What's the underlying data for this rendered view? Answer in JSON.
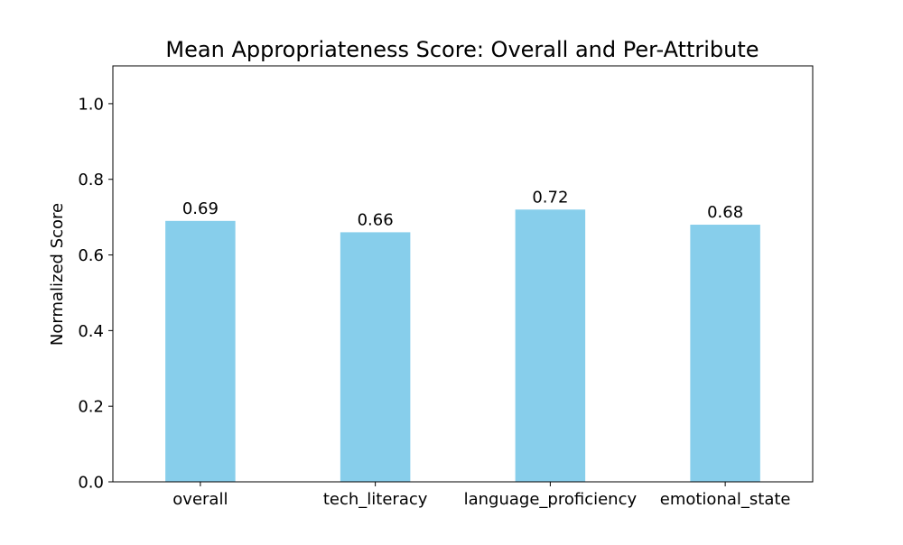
{
  "chart_data": {
    "type": "bar",
    "title": "Mean Appropriateness Score: Overall and Per-Attribute",
    "xlabel": "",
    "ylabel": "Normalized Score",
    "categories": [
      "overall",
      "tech_literacy",
      "language_proficiency",
      "emotional_state"
    ],
    "values": [
      0.69,
      0.66,
      0.72,
      0.68
    ],
    "value_labels": [
      "0.69",
      "0.66",
      "0.72",
      "0.68"
    ],
    "ylim": [
      0,
      1.1
    ],
    "yticks": [
      0.0,
      0.2,
      0.4,
      0.6,
      0.8,
      1.0
    ],
    "ytick_labels": [
      "0.0",
      "0.2",
      "0.4",
      "0.6",
      "0.8",
      "1.0"
    ],
    "grid": false,
    "bar_color": "#87CEEB"
  }
}
